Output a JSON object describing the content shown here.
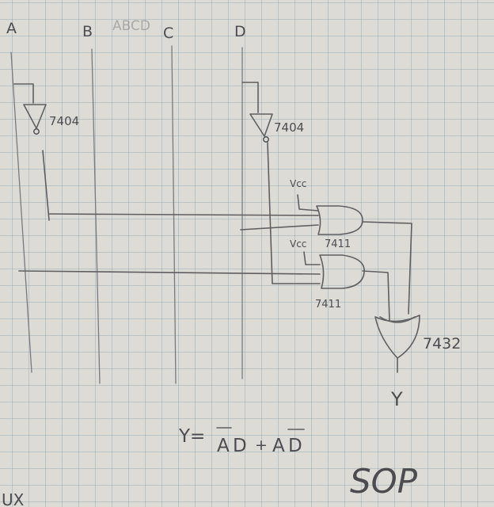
{
  "inputs": [
    "A",
    "B",
    "C",
    "D"
  ],
  "top_note": "ABCD",
  "chips": {
    "not_a": "7404",
    "not_d": "7404",
    "and_top": "7411",
    "and_bottom": "7411",
    "or_gate": "7432"
  },
  "supply_top": "Vcc",
  "supply_bottom": "Vcc",
  "output": "Y",
  "equation": {
    "lhs": "Y=",
    "term1_bar": "A",
    "term1_rest": "D",
    "plus": "+",
    "term2_plain": "A",
    "term2_bar": "D"
  },
  "form": "SOP",
  "edge_note": "UX"
}
